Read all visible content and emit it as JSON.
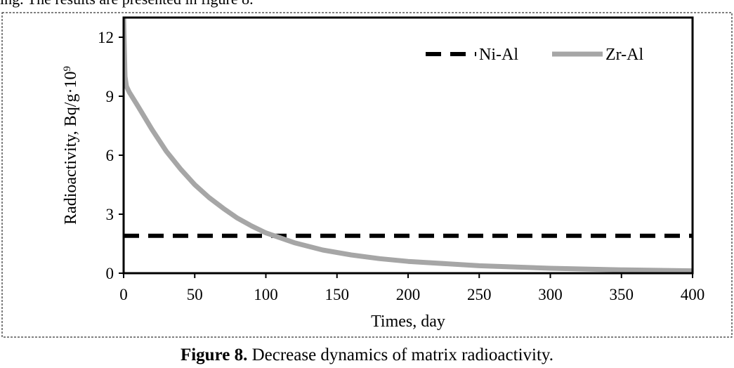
{
  "page": {
    "top_text": "ing. The results are presented in figure 8.",
    "caption_label": "Figure 8.",
    "caption_text": " Decrease dynamics of matrix radioactivity."
  },
  "colors": {
    "ni_al": "#000000",
    "zr_al": "#a6a6a6",
    "frame": "#000000"
  },
  "chart_data": {
    "type": "line",
    "title": "",
    "xlabel": "Times, day",
    "ylabel": "Radioactivity, Bq/g·10",
    "ylabel_superscript": "9",
    "xlim": [
      0,
      400
    ],
    "ylim": [
      0,
      13
    ],
    "xticks": [
      0,
      50,
      100,
      150,
      200,
      250,
      300,
      350,
      400
    ],
    "yticks": [
      0,
      3,
      6,
      9,
      12
    ],
    "legend_position": "top-right",
    "series": [
      {
        "name": "Ni-Al",
        "style": "dashed",
        "x": [
          0,
          400
        ],
        "y": [
          1.9,
          1.9
        ]
      },
      {
        "name": "Zr-Al",
        "style": "solid",
        "x": [
          0,
          1,
          2,
          4,
          10,
          20,
          30,
          40,
          50,
          60,
          70,
          80,
          90,
          100,
          120,
          140,
          160,
          180,
          200,
          250,
          300,
          350,
          400
        ],
        "y": [
          13.0,
          10.0,
          9.5,
          9.2,
          8.5,
          7.3,
          6.2,
          5.3,
          4.5,
          3.85,
          3.3,
          2.8,
          2.4,
          2.05,
          1.55,
          1.18,
          0.93,
          0.74,
          0.6,
          0.38,
          0.25,
          0.17,
          0.12
        ]
      }
    ]
  }
}
